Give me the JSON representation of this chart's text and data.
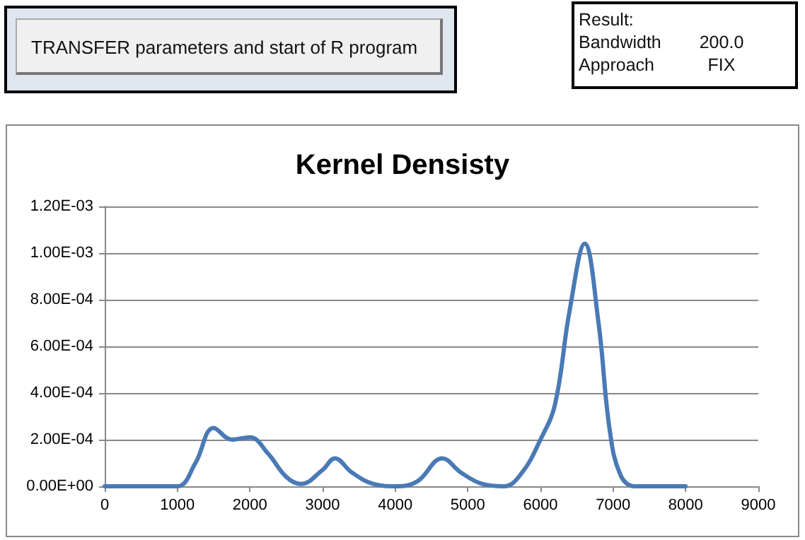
{
  "chart_data": {
    "type": "line",
    "title": "Kernel Densisty",
    "x": [
      0,
      500,
      1000,
      1250,
      1500,
      1750,
      2000,
      2250,
      2500,
      2700,
      3000,
      3170,
      3400,
      3700,
      4000,
      4300,
      4650,
      4900,
      5200,
      5500,
      5750,
      6000,
      6200,
      6400,
      6610,
      6800,
      6950,
      7100,
      7300,
      7600,
      8000
    ],
    "series": [
      {
        "color": "#4a7ab5",
        "values": [
          0,
          0,
          0,
          0.0001,
          0.00025,
          0.0002,
          0.00021,
          0.00014,
          4e-05,
          1e-05,
          7e-05,
          0.00012,
          6e-05,
          1e-05,
          0,
          2e-05,
          0.00012,
          6e-05,
          1e-05,
          0,
          6e-05,
          0.0002,
          0.00035,
          0.00075,
          0.00104,
          0.0007,
          0.00025,
          5e-05,
          0,
          0,
          0
        ]
      }
    ],
    "xlim": [
      0,
      9000
    ],
    "xticks": [
      0,
      1000,
      2000,
      3000,
      4000,
      5000,
      6000,
      7000,
      8000,
      9000
    ],
    "ylim": [
      0,
      0.0012
    ],
    "yticks": [
      {
        "value": 0,
        "label": "0.00E+00"
      },
      {
        "value": 0.0002,
        "label": "2.00E-04"
      },
      {
        "value": 0.0004,
        "label": "4.00E-04"
      },
      {
        "value": 0.0006,
        "label": "6.00E-04"
      },
      {
        "value": 0.0008,
        "label": "8.00E-04"
      },
      {
        "value": 0.001,
        "label": "1.00E-03"
      },
      {
        "value": 0.0012,
        "label": "1.20E-03"
      }
    ],
    "grid": "y",
    "marker": "none",
    "line_style": "solid",
    "annotations": [
      "TRANSFER parameters and start of R program",
      "Result:",
      "Bandwidth",
      "200.0",
      "Approach",
      "FIX"
    ]
  }
}
